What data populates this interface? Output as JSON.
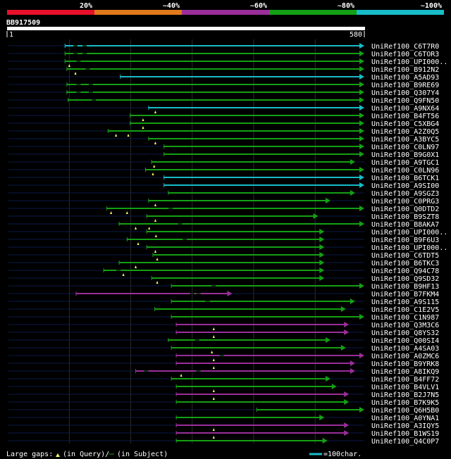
{
  "query_id": "BB917509",
  "ruler": {
    "start": "1",
    "end": "580",
    "length": 580
  },
  "identity_legend": {
    "labels": [
      "20%",
      "~40%",
      "~60%",
      "~80%",
      "~100%"
    ],
    "colors": [
      "#e8102a",
      "#e07a1a",
      "#9a2e9a",
      "#14a014",
      "#17bcc8"
    ]
  },
  "footer": {
    "large_gaps": "Large gaps:",
    "in_query": "(in Query)/",
    "in_subject": "(in Subject)",
    "scale_label": "=100char."
  },
  "chart_data": {
    "type": "alignment-overview",
    "query_length": 580,
    "hits": [
      {
        "id": "UniRef100_C6T7R0",
        "start": 93,
        "end": 580,
        "identity": "~100%",
        "color": "#17bcc8",
        "query_gaps": [],
        "subject_gaps": [
          110,
          125
        ]
      },
      {
        "id": "UniRef100_C6TOR3",
        "start": 93,
        "end": 580,
        "identity": "~80%",
        "color": "#14a014",
        "query_gaps": [],
        "subject_gaps": [
          110,
          125
        ]
      },
      {
        "id": "UniRef100_UPI000..",
        "start": 93,
        "end": 580,
        "identity": "~80%",
        "color": "#14a014",
        "query_gaps": [
          100
        ],
        "subject_gaps": [
          115
        ]
      },
      {
        "id": "UniRef100_B912N2",
        "start": 96,
        "end": 580,
        "identity": "~80%",
        "color": "#14a014",
        "query_gaps": [
          110
        ],
        "subject_gaps": [
          130
        ]
      },
      {
        "id": "UniRef100_A5AD93",
        "start": 183,
        "end": 580,
        "identity": "~100%",
        "color": "#17bcc8",
        "query_gaps": [],
        "subject_gaps": []
      },
      {
        "id": "UniRef100_B9RE69",
        "start": 96,
        "end": 580,
        "identity": "~80%",
        "color": "#14a014",
        "query_gaps": [],
        "subject_gaps": [
          115,
          135
        ]
      },
      {
        "id": "UniRef100_Q307Y4",
        "start": 96,
        "end": 580,
        "identity": "~80%",
        "color": "#14a014",
        "query_gaps": [],
        "subject_gaps": [
          115,
          135
        ]
      },
      {
        "id": "UniRef100_Q9FN50",
        "start": 98,
        "end": 580,
        "identity": "~80%",
        "color": "#14a014",
        "query_gaps": [],
        "subject_gaps": [
          140
        ]
      },
      {
        "id": "UniRef100_A9NX64",
        "start": 229,
        "end": 580,
        "identity": "~100%",
        "color": "#17bcc8",
        "query_gaps": [
          240
        ],
        "subject_gaps": []
      },
      {
        "id": "UniRef100_B4FT56",
        "start": 199,
        "end": 580,
        "identity": "~80%",
        "color": "#14a014",
        "query_gaps": [
          220
        ],
        "subject_gaps": []
      },
      {
        "id": "UniRef100_C5XBG4",
        "start": 199,
        "end": 580,
        "identity": "~80%",
        "color": "#14a014",
        "query_gaps": [
          220
        ],
        "subject_gaps": []
      },
      {
        "id": "UniRef100_A2Z0Q5",
        "start": 163,
        "end": 580,
        "identity": "~80%",
        "color": "#14a014",
        "query_gaps": [
          176,
          196
        ],
        "subject_gaps": []
      },
      {
        "id": "UniRef100_A3BYC5",
        "start": 229,
        "end": 580,
        "identity": "~80%",
        "color": "#14a014",
        "query_gaps": [
          240
        ],
        "subject_gaps": []
      },
      {
        "id": "UniRef100_C0LN97",
        "start": 254,
        "end": 580,
        "identity": "~80%",
        "color": "#14a014",
        "query_gaps": [],
        "subject_gaps": []
      },
      {
        "id": "UniRef100_B9G0X1",
        "start": 254,
        "end": 580,
        "identity": "~80%",
        "color": "#14a014",
        "query_gaps": [],
        "subject_gaps": []
      },
      {
        "id": "UniRef100_A9TGC1",
        "start": 234,
        "end": 565,
        "identity": "~80%",
        "color": "#14a014",
        "query_gaps": [
          238
        ],
        "subject_gaps": []
      },
      {
        "id": "UniRef100_C0LN96",
        "start": 224,
        "end": 580,
        "identity": "~80%",
        "color": "#14a014",
        "query_gaps": [
          236
        ],
        "subject_gaps": []
      },
      {
        "id": "UniRef100_B6TCK1",
        "start": 254,
        "end": 580,
        "identity": "~100%",
        "color": "#17bcc8",
        "query_gaps": [],
        "subject_gaps": []
      },
      {
        "id": "UniRef100_A9SI00",
        "start": 254,
        "end": 580,
        "identity": "~100%",
        "color": "#17bcc8",
        "query_gaps": [],
        "subject_gaps": []
      },
      {
        "id": "UniRef100_A9SGZ3",
        "start": 261,
        "end": 565,
        "identity": "~80%",
        "color": "#14a014",
        "query_gaps": [],
        "subject_gaps": []
      },
      {
        "id": "UniRef100_C0PRG3",
        "start": 229,
        "end": 525,
        "identity": "~80%",
        "color": "#14a014",
        "query_gaps": [
          240
        ],
        "subject_gaps": []
      },
      {
        "id": "UniRef100_Q0DTD2",
        "start": 161,
        "end": 580,
        "identity": "~80%",
        "color": "#14a014",
        "query_gaps": [
          168,
          194
        ],
        "subject_gaps": [
          265
        ]
      },
      {
        "id": "UniRef100_B9SZT8",
        "start": 226,
        "end": 505,
        "identity": "~80%",
        "color": "#14a014",
        "query_gaps": [
          240
        ],
        "subject_gaps": []
      },
      {
        "id": "UniRef100_B8AKA7",
        "start": 181,
        "end": 580,
        "identity": "~80%",
        "color": "#14a014",
        "query_gaps": [
          208,
          230
        ],
        "subject_gaps": [
          280
        ]
      },
      {
        "id": "UniRef100_UPI000..",
        "start": 226,
        "end": 515,
        "identity": "~80%",
        "color": "#14a014",
        "query_gaps": [
          241
        ],
        "subject_gaps": []
      },
      {
        "id": "UniRef100_B9F6U3",
        "start": 194,
        "end": 515,
        "identity": "~80%",
        "color": "#14a014",
        "query_gaps": [
          212
        ],
        "subject_gaps": [
          288
        ]
      },
      {
        "id": "UniRef100_UPI000..",
        "start": 226,
        "end": 515,
        "identity": "~80%",
        "color": "#14a014",
        "query_gaps": [
          240
        ],
        "subject_gaps": []
      },
      {
        "id": "UniRef100_C6TDT5",
        "start": 236,
        "end": 515,
        "identity": "~80%",
        "color": "#14a014",
        "query_gaps": [
          243
        ],
        "subject_gaps": []
      },
      {
        "id": "UniRef100_B6TKC3",
        "start": 181,
        "end": 515,
        "identity": "~80%",
        "color": "#14a014",
        "query_gaps": [
          208
        ],
        "subject_gaps": []
      },
      {
        "id": "UniRef100_Q94C78",
        "start": 156,
        "end": 515,
        "identity": "~80%",
        "color": "#14a014",
        "query_gaps": [
          188
        ],
        "subject_gaps": [
          180
        ]
      },
      {
        "id": "UniRef100_Q9SD32",
        "start": 234,
        "end": 515,
        "identity": "~80%",
        "color": "#14a014",
        "query_gaps": [
          243
        ],
        "subject_gaps": []
      },
      {
        "id": "UniRef100_B9HF13",
        "start": 266,
        "end": 580,
        "identity": "~80%",
        "color": "#14a014",
        "query_gaps": [],
        "subject_gaps": [
          335
        ]
      },
      {
        "id": "UniRef100_B7FKM4",
        "start": 111,
        "end": 365,
        "identity": "~60%",
        "color": "#9a2e9a",
        "query_gaps": [],
        "subject_gaps": [
          300,
          310
        ]
      },
      {
        "id": "UniRef100_A9S115",
        "start": 266,
        "end": 565,
        "identity": "~80%",
        "color": "#14a014",
        "query_gaps": [],
        "subject_gaps": [
          325
        ]
      },
      {
        "id": "UniRef100_C1E2V5",
        "start": 239,
        "end": 550,
        "identity": "~80%",
        "color": "#14a014",
        "query_gaps": [],
        "subject_gaps": []
      },
      {
        "id": "UniRef100_C1N987",
        "start": 266,
        "end": 580,
        "identity": "~80%",
        "color": "#14a014",
        "query_gaps": [],
        "subject_gaps": []
      },
      {
        "id": "UniRef100_Q3M3C6",
        "start": 274,
        "end": 555,
        "identity": "~60%",
        "color": "#9a2e9a",
        "query_gaps": [
          335
        ],
        "subject_gaps": []
      },
      {
        "id": "UniRef100_Q8YS32",
        "start": 274,
        "end": 555,
        "identity": "~60%",
        "color": "#9a2e9a",
        "query_gaps": [
          335
        ],
        "subject_gaps": []
      },
      {
        "id": "UniRef100_Q00SI4",
        "start": 261,
        "end": 525,
        "identity": "~80%",
        "color": "#14a014",
        "query_gaps": [],
        "subject_gaps": [
          308
        ]
      },
      {
        "id": "UniRef100_A4SA03",
        "start": 266,
        "end": 550,
        "identity": "~80%",
        "color": "#14a014",
        "query_gaps": [
          332
        ],
        "subject_gaps": []
      },
      {
        "id": "UniRef100_A0ZMC6",
        "start": 274,
        "end": 580,
        "identity": "~60%",
        "color": "#9a2e9a",
        "query_gaps": [
          335
        ],
        "subject_gaps": [
          348
        ]
      },
      {
        "id": "UniRef100_B9YRK8",
        "start": 274,
        "end": 565,
        "identity": "~60%",
        "color": "#9a2e9a",
        "query_gaps": [
          335
        ],
        "subject_gaps": []
      },
      {
        "id": "UniRef100_A8IKQ9",
        "start": 208,
        "end": 565,
        "identity": "~60%",
        "color": "#9a2e9a",
        "query_gaps": [
          282
        ],
        "subject_gaps": [
          225,
          310
        ]
      },
      {
        "id": "UniRef100_B4FF72",
        "start": 266,
        "end": 525,
        "identity": "~80%",
        "color": "#14a014",
        "query_gaps": [],
        "subject_gaps": []
      },
      {
        "id": "UniRef100_B4VLV1",
        "start": 274,
        "end": 535,
        "identity": "~80%",
        "color": "#14a014",
        "query_gaps": [
          335
        ],
        "subject_gaps": []
      },
      {
        "id": "UniRef100_B2J7N5",
        "start": 274,
        "end": 555,
        "identity": "~60%",
        "color": "#9a2e9a",
        "query_gaps": [
          335
        ],
        "subject_gaps": []
      },
      {
        "id": "UniRef100_B7K9K5",
        "start": 274,
        "end": 555,
        "identity": "~80%",
        "color": "#14a014",
        "query_gaps": [],
        "subject_gaps": []
      },
      {
        "id": "UniRef100_Q6H5B0",
        "start": 405,
        "end": 580,
        "identity": "~80%",
        "color": "#14a014",
        "query_gaps": [],
        "subject_gaps": []
      },
      {
        "id": "UniRef100_A0YNA1",
        "start": 274,
        "end": 515,
        "identity": "~80%",
        "color": "#14a014",
        "query_gaps": [],
        "subject_gaps": []
      },
      {
        "id": "UniRef100_A3IQY5",
        "start": 274,
        "end": 555,
        "identity": "~60%",
        "color": "#9a2e9a",
        "query_gaps": [
          335
        ],
        "subject_gaps": []
      },
      {
        "id": "UniRef100_B1WS19",
        "start": 274,
        "end": 555,
        "identity": "~60%",
        "color": "#9a2e9a",
        "query_gaps": [
          335
        ],
        "subject_gaps": []
      },
      {
        "id": "UniRef100_Q4C0P7",
        "start": 274,
        "end": 520,
        "identity": "~80%",
        "color": "#14a014",
        "query_gaps": [],
        "subject_gaps": []
      }
    ]
  }
}
